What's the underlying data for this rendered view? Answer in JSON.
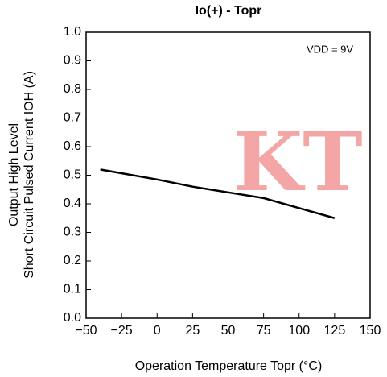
{
  "chart_data": {
    "type": "line",
    "title": "Io(+) - Topr",
    "xlabel": "Operation Temperature Topr (°C)",
    "ylabel": [
      "Output High Level",
      "Short Circuit Pulsed Current IOH (A)"
    ],
    "annotation": "VDD = 9V",
    "watermark": "KT",
    "x": [
      -40,
      0,
      25,
      50,
      75,
      100,
      125
    ],
    "series": [
      {
        "color": "#000000",
        "values": [
          0.52,
          0.485,
          0.46,
          0.44,
          0.42,
          0.385,
          0.35
        ]
      }
    ],
    "xlim": [
      -50,
      150
    ],
    "xticks": [
      {
        "value": -50,
        "label": "−50"
      },
      {
        "value": -25,
        "label": "−25"
      },
      0,
      25,
      50,
      75,
      100,
      125,
      150
    ],
    "ylim": [
      0,
      1
    ],
    "yticks": [
      {
        "value": 0,
        "label": "0.0"
      },
      0.1,
      0.2,
      0.3,
      0.4,
      0.5,
      0.6,
      0.7,
      0.8,
      0.9,
      {
        "value": 1,
        "label": "1.0"
      }
    ],
    "grid": false
  }
}
